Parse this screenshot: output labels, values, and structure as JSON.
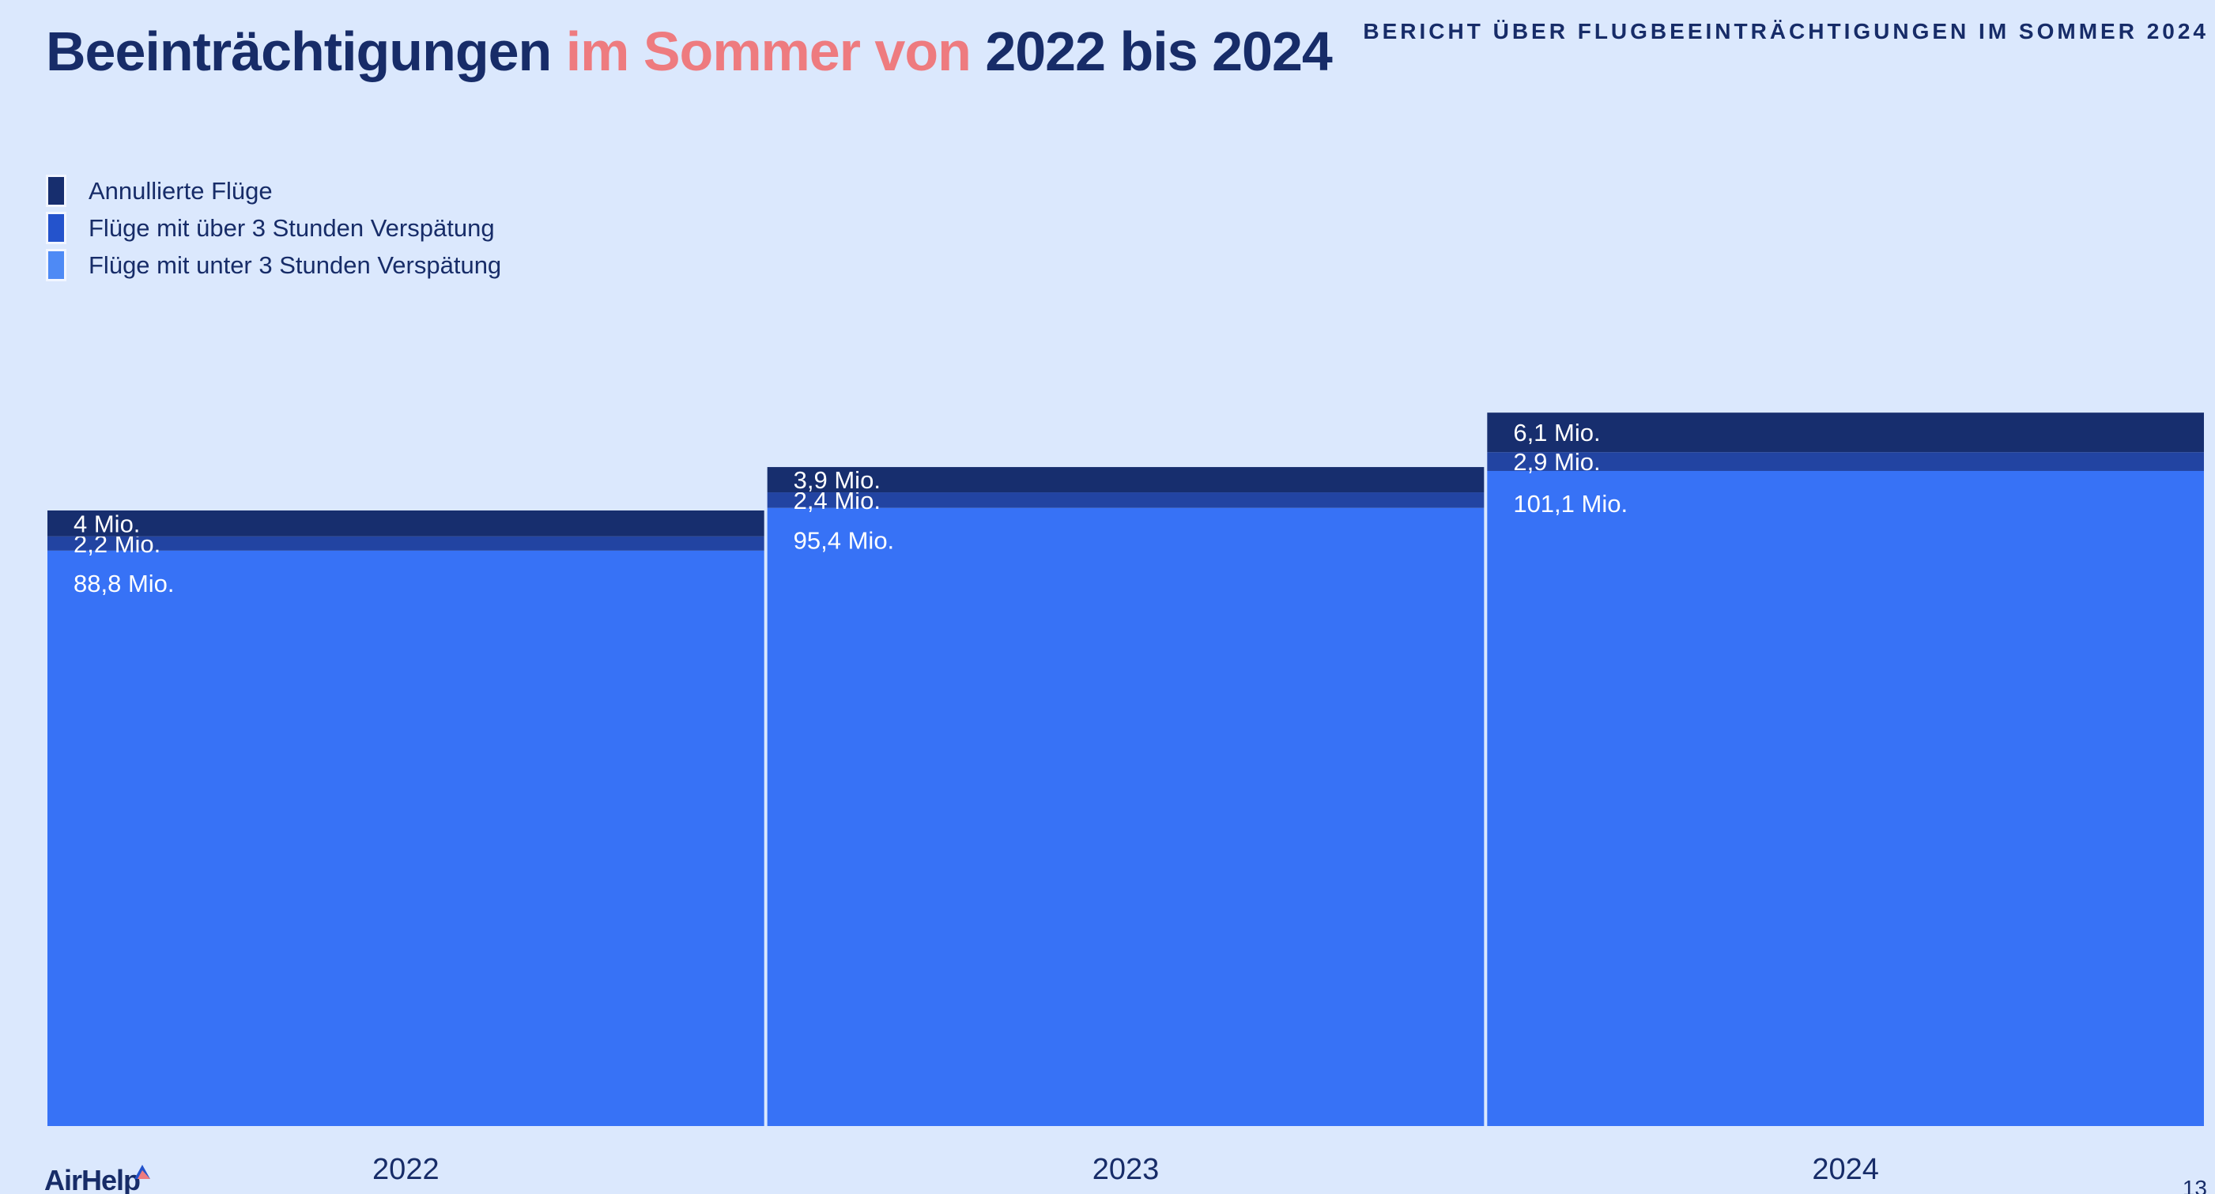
{
  "header": {
    "title_part1": "Beeinträchtigungen ",
    "title_accent": "im Sommer von",
    "title_part2": " 2022 bis 2024",
    "report_title": "BERICHT ÜBER FLUGBEEINTRÄCHTIGUNGEN IM SOMMER 2024"
  },
  "footer": {
    "brand": "AirHelp",
    "page_number": "13"
  },
  "colors": {
    "background": "#dbe8fd",
    "text": "#172c68",
    "accent": "#ee7b7f",
    "cancelled": "#172e6e",
    "delayed_over_3h": "#2244a2",
    "delayed_under_3h": "#3772f6"
  },
  "chart_data": {
    "type": "bar",
    "stacked": true,
    "categories": [
      "2022",
      "2023",
      "2024"
    ],
    "series": [
      {
        "name": "Flüge mit unter 3 Stunden Verspätung",
        "values": [
          88.8,
          95.4,
          101.1
        ],
        "labels": [
          "88,8 Mio.",
          "95,4 Mio.",
          "101,1 Mio."
        ],
        "color": "#3772f6",
        "legend_color": "#4e8af5"
      },
      {
        "name": "Flüge mit über 3 Stunden Verspätung",
        "values": [
          2.2,
          2.4,
          2.9
        ],
        "labels": [
          "2,2 Mio.",
          "2,4 Mio.",
          "2,9 Mio."
        ],
        "color": "#2244a2",
        "legend_color": "#2453cc"
      },
      {
        "name": "Annullierte Flüge",
        "values": [
          4,
          3.9,
          6.1
        ],
        "labels": [
          "4 Mio.",
          "3,9 Mio.",
          "6,1 Mio."
        ],
        "color": "#172e6e",
        "legend_color": "#172e6e"
      }
    ],
    "legend_order": [
      2,
      1,
      0
    ],
    "legend_position": "top-left",
    "grid": false,
    "ylim": [
      0,
      110
    ],
    "unit": "Mio."
  }
}
